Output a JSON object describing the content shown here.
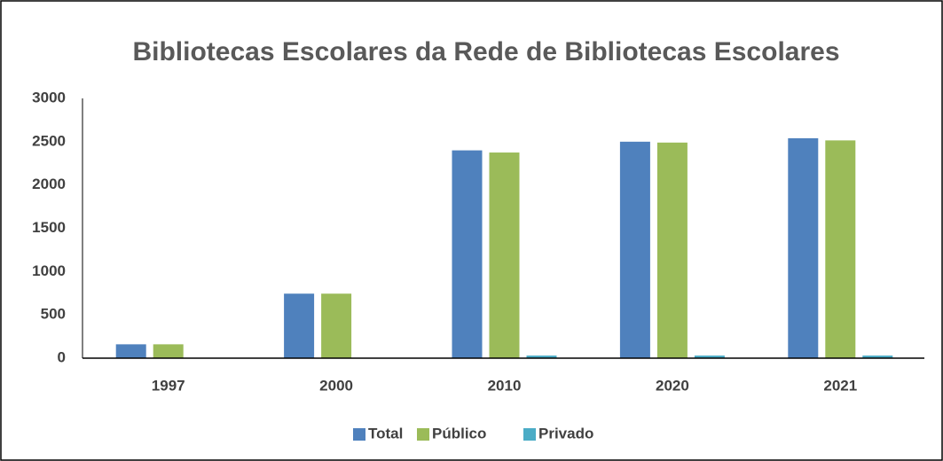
{
  "chart_data": {
    "type": "bar",
    "title": "Bibliotecas Escolares da Rede de Bibliotecas Escolares",
    "categories": [
      "1997",
      "2000",
      "2010",
      "2020",
      "2021"
    ],
    "series": [
      {
        "name": "Total",
        "color": "#4f81bd",
        "values": [
          160,
          745,
          2400,
          2500,
          2540
        ]
      },
      {
        "name": "Público",
        "color": "#9bbb59",
        "values": [
          160,
          745,
          2375,
          2490,
          2515
        ]
      },
      {
        "name": "Privado",
        "color": "#4bacc6",
        "values": [
          0,
          0,
          30,
          30,
          30
        ]
      }
    ],
    "ylim": [
      0,
      3000
    ],
    "yticks": [
      0,
      500,
      1000,
      1500,
      2000,
      2500,
      3000
    ],
    "grid": false,
    "legend": "bottom"
  }
}
